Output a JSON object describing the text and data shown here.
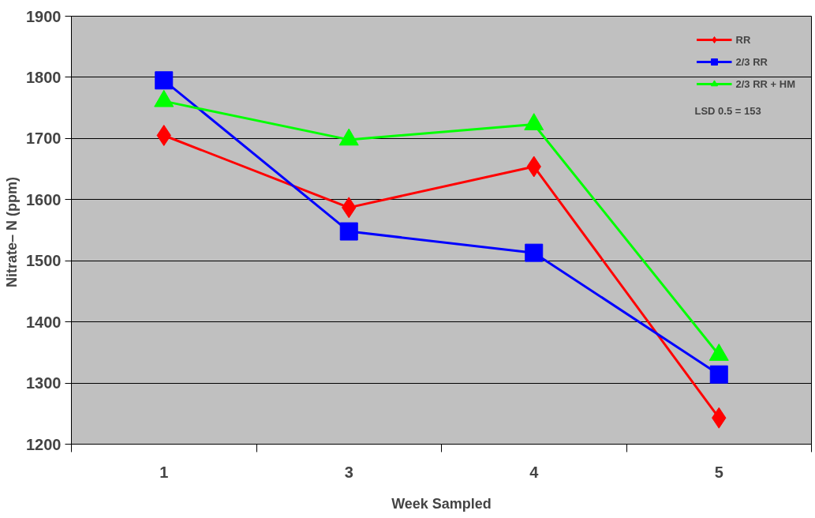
{
  "chart_data": {
    "type": "line",
    "xlabel": "Week Sampled",
    "ylabel": "Nitrate– N  (ppm)",
    "categories": [
      "1",
      "3",
      "4",
      "5"
    ],
    "series": [
      {
        "name": "RR",
        "color": "#ff0000",
        "marker": "diamond",
        "values": [
          1705,
          1587,
          1654,
          1243
        ]
      },
      {
        "name": "2/3 RR",
        "color": "#0000ff",
        "marker": "square",
        "values": [
          1795,
          1548,
          1513,
          1314
        ]
      },
      {
        "name": "2/3 RR + HM",
        "color": "#00ff00",
        "marker": "triangle",
        "values": [
          1761,
          1698,
          1723,
          1346
        ]
      }
    ],
    "ylim": [
      1200,
      1900
    ],
    "yticks": [
      1200,
      1300,
      1400,
      1500,
      1600,
      1700,
      1800,
      1900
    ],
    "grid": "y",
    "legend": "top right",
    "annotations": [
      "LSD 0.5 = 153"
    ]
  }
}
